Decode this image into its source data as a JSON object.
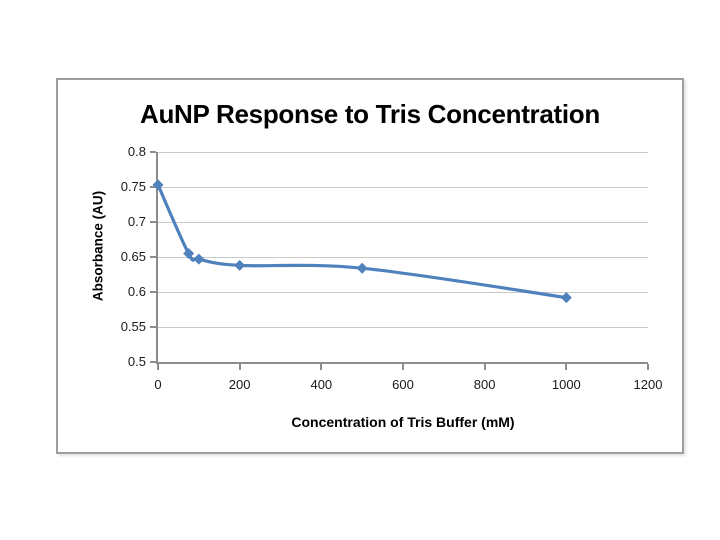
{
  "chart_data": {
    "type": "line",
    "title": "AuNP Response to Tris Concentration",
    "xlabel": "Concentration of Tris Buffer (mM)",
    "ylabel": "Absorbance (AU)",
    "series": [
      {
        "x": [
          0,
          75,
          100,
          200,
          500,
          1000
        ],
        "y": [
          0.753,
          0.655,
          0.647,
          0.638,
          0.634,
          0.592
        ]
      }
    ],
    "xlim": [
      0,
      1200
    ],
    "ylim": [
      0.5,
      0.8
    ],
    "x_ticks": {
      "values": [
        0,
        200,
        400,
        600,
        800,
        1000,
        1200
      ],
      "labels": [
        "0",
        "200",
        "400",
        "600",
        "800",
        "1000",
        "1200"
      ]
    },
    "y_ticks": {
      "values": [
        0.5,
        0.55,
        0.6,
        0.65,
        0.7,
        0.75,
        0.8
      ],
      "labels": [
        "0.5",
        "0.55",
        "0.6",
        "0.65",
        "0.7",
        "0.75",
        "0.8"
      ]
    },
    "grid": "horizontal-only",
    "legend": "none",
    "marker": "diamond",
    "smooth_line": true,
    "colors": {
      "line": "#4F81BD",
      "marker": "#4F81BD",
      "gridline": "#C9C9C9",
      "axis": "#8C8C8C",
      "frame_border": "#9E9E9E",
      "title_text": "#000000",
      "tick_text": "#1A1A1A",
      "background": "#FFFFFF"
    }
  }
}
